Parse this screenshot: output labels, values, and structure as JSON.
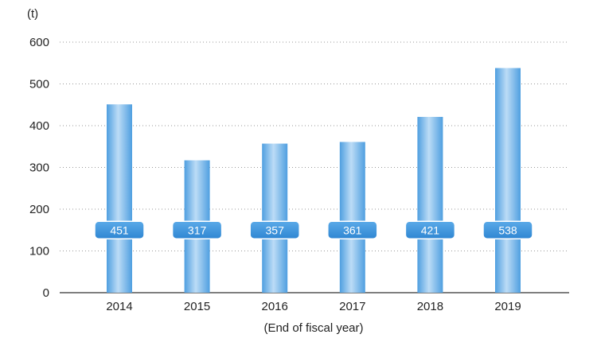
{
  "chart_data": {
    "type": "bar",
    "unit_label": "(t)",
    "xlabel": "(End of fiscal year)",
    "categories": [
      "2014",
      "2015",
      "2016",
      "2017",
      "2018",
      "2019"
    ],
    "values": [
      451,
      317,
      357,
      361,
      421,
      538
    ],
    "ylim": [
      0,
      600
    ],
    "yticks": [
      0,
      100,
      200,
      300,
      400,
      500,
      600
    ],
    "grid": true,
    "bar_color": "#5aa8e6",
    "badge_color": "#3d93dc",
    "badge_value_level": 150
  }
}
